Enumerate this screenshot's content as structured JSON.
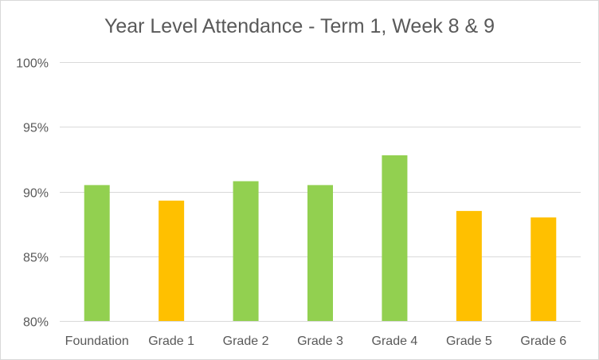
{
  "chart_data": {
    "type": "bar",
    "title": "Year Level Attendance - Term 1, Week 8 & 9",
    "xlabel": "",
    "ylabel": "",
    "categories": [
      "Foundation",
      "Grade 1",
      "Grade 2",
      "Grade 3",
      "Grade 4",
      "Grade 5",
      "Grade 6"
    ],
    "values": [
      90.5,
      89.3,
      90.8,
      90.5,
      92.8,
      88.5,
      88.0
    ],
    "bar_colors": [
      "#92d050",
      "#ffc000",
      "#92d050",
      "#92d050",
      "#92d050",
      "#ffc000",
      "#ffc000"
    ],
    "ylim": [
      80,
      100
    ],
    "yticks": [
      80,
      85,
      90,
      95,
      100
    ],
    "ytick_labels": [
      "80%",
      "85%",
      "90%",
      "95%",
      "100%"
    ],
    "grid": true,
    "legend": "none",
    "colors": {
      "grid": "#d9d9d9",
      "text": "#595959"
    }
  }
}
